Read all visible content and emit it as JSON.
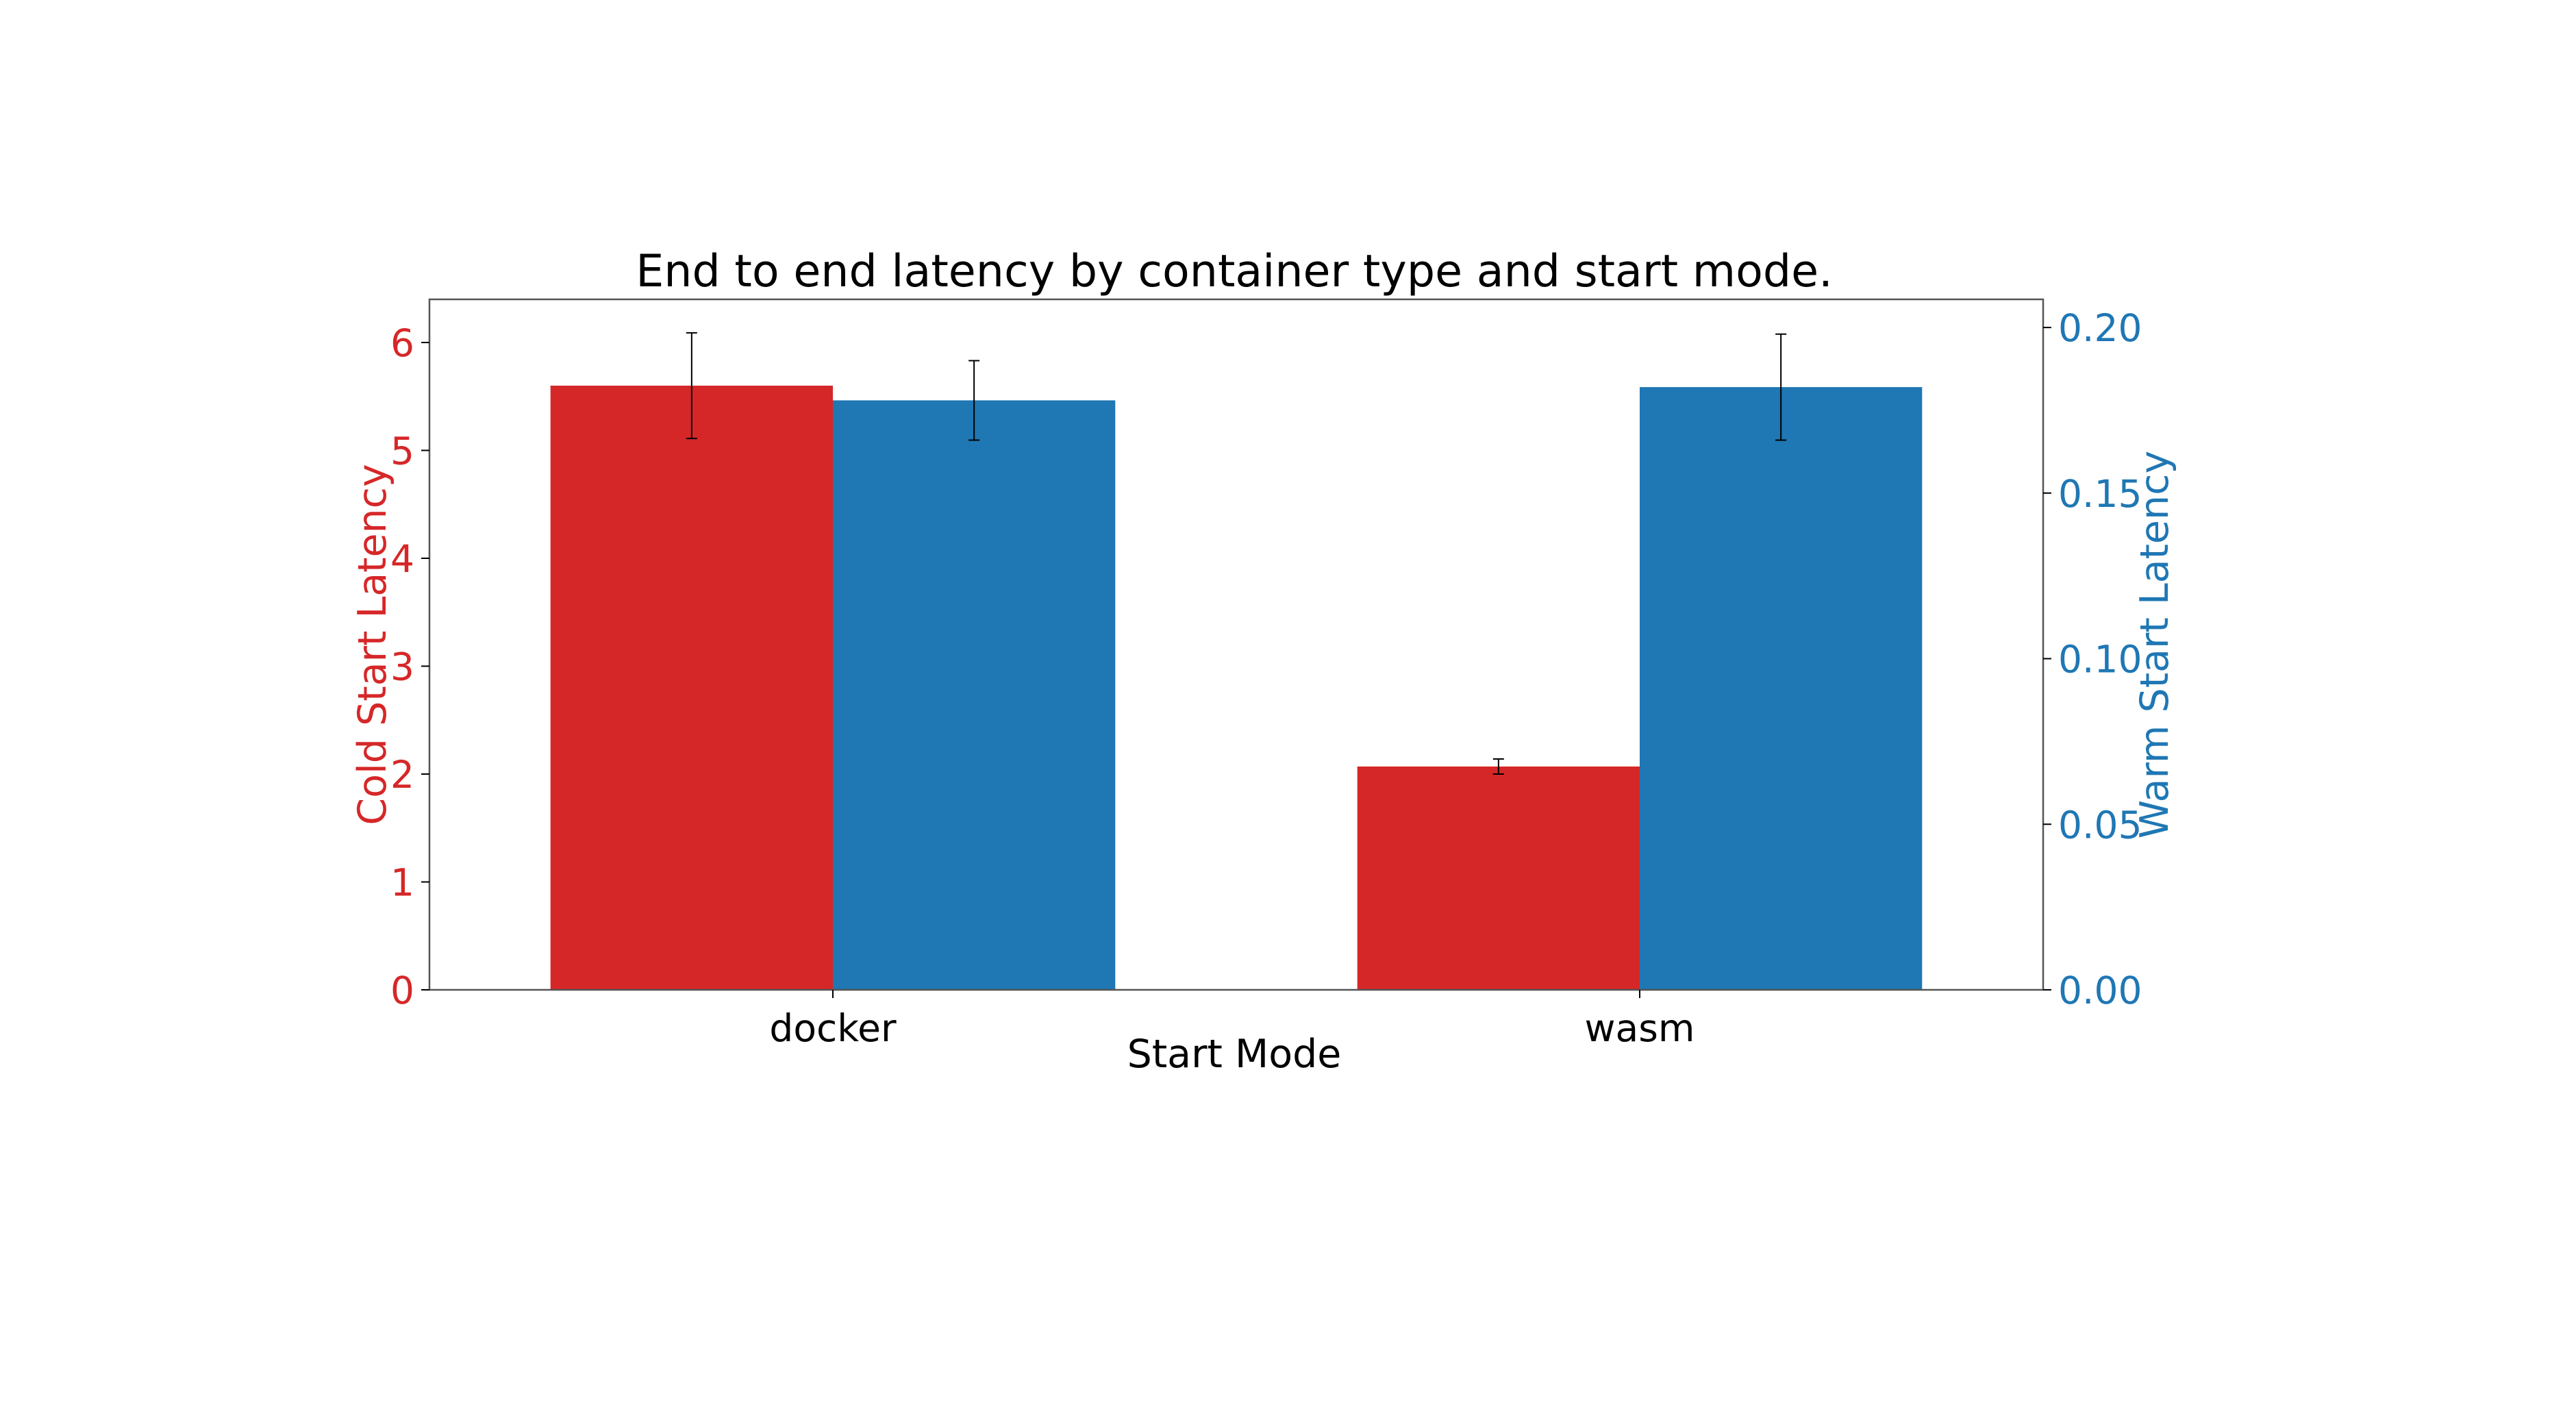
{
  "chart_data": {
    "type": "bar",
    "title": "End to end latency by container type and start mode.",
    "xlabel": "Start Mode",
    "categories": [
      "docker",
      "wasm"
    ],
    "y_left": {
      "label": "Cold Start Latency",
      "color": "#d62728",
      "range": [
        0,
        6.4
      ],
      "ticks": [
        0,
        1,
        2,
        3,
        4,
        5,
        6
      ],
      "tick_labels": [
        "0",
        "1",
        "2",
        "3",
        "4",
        "5",
        "6"
      ]
    },
    "y_right": {
      "label": "Warm Start Latency",
      "color": "#1f77b4",
      "range": [
        0,
        0.2085
      ],
      "ticks": [
        0,
        0.05,
        0.1,
        0.15,
        0.2
      ],
      "tick_labels": [
        "0.00",
        "0.05",
        "0.10",
        "0.15",
        "0.20"
      ]
    },
    "series": [
      {
        "axis": "left",
        "color": "#d62728",
        "values": [
          5.6,
          2.07
        ],
        "errors": [
          0.49,
          0.07
        ]
      },
      {
        "axis": "right",
        "color": "#1f77b4",
        "values": [
          0.178,
          0.182
        ],
        "errors": [
          0.012,
          0.016
        ]
      }
    ],
    "grid": false,
    "legend": null
  }
}
